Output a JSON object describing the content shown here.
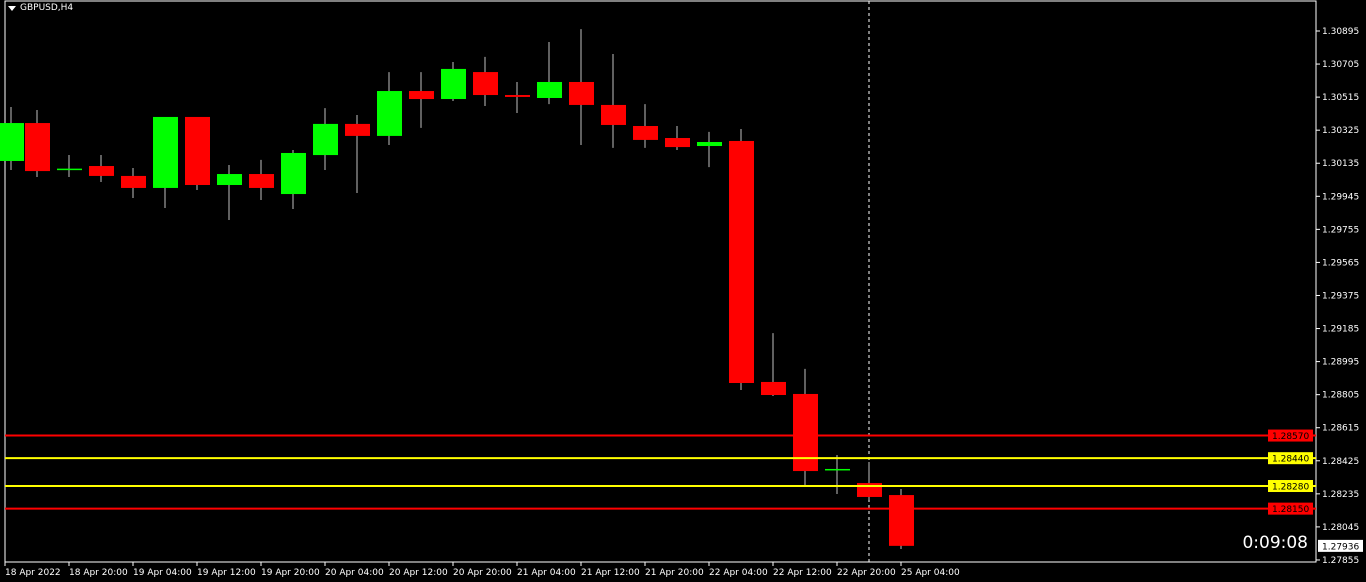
{
  "chart_data": {
    "type": "candlestick",
    "title": "GBPUSD,H4",
    "symbol": "GBPUSD",
    "timeframe": "H4",
    "ylim": [
      1.27815,
      1.30985
    ],
    "y_ticks": [
      "1.30895",
      "1.30705",
      "1.30515",
      "1.30325",
      "1.30135",
      "1.29945",
      "1.29755",
      "1.29565",
      "1.29375",
      "1.29185",
      "1.28995",
      "1.28805",
      "1.28615",
      "1.28425",
      "1.28235",
      "1.28045",
      "1.27855"
    ],
    "x_ticks": [
      "18 Apr 2022",
      "18 Apr 20:00",
      "19 Apr 04:00",
      "19 Apr 12:00",
      "19 Apr 20:00",
      "20 Apr 04:00",
      "20 Apr 12:00",
      "20 Apr 20:00",
      "21 Apr 04:00",
      "21 Apr 12:00",
      "21 Apr 20:00",
      "22 Apr 04:00",
      "22 Apr 12:00",
      "22 Apr 20:00",
      "25 Apr 04:00"
    ],
    "candles": [
      {
        "o": 1.30148,
        "h": 1.30458,
        "l": 1.30096,
        "c": 1.30366
      },
      {
        "o": 1.30366,
        "h": 1.30441,
        "l": 1.30056,
        "c": 1.3009
      },
      {
        "o": 1.301,
        "h": 1.30182,
        "l": 1.30056,
        "c": 1.30104
      },
      {
        "o": 1.30119,
        "h": 1.30182,
        "l": 1.30027,
        "c": 1.30062
      },
      {
        "o": 1.30062,
        "h": 1.30108,
        "l": 1.29935,
        "c": 1.29993
      },
      {
        "o": 1.29993,
        "h": 1.30401,
        "l": 1.29878,
        "c": 1.30401
      },
      {
        "o": 1.30401,
        "h": 1.30401,
        "l": 1.29981,
        "c": 1.3001
      },
      {
        "o": 1.3001,
        "h": 1.30125,
        "l": 1.29809,
        "c": 1.30073
      },
      {
        "o": 1.30073,
        "h": 1.30154,
        "l": 1.29924,
        "c": 1.29993
      },
      {
        "o": 1.29958,
        "h": 1.30211,
        "l": 1.29872,
        "c": 1.30194
      },
      {
        "o": 1.30182,
        "h": 1.30452,
        "l": 1.30096,
        "c": 1.30361
      },
      {
        "o": 1.30361,
        "h": 1.30412,
        "l": 1.29964,
        "c": 1.30292
      },
      {
        "o": 1.30292,
        "h": 1.30659,
        "l": 1.3024,
        "c": 1.3055
      },
      {
        "o": 1.3055,
        "h": 1.30659,
        "l": 1.30338,
        "c": 1.30504
      },
      {
        "o": 1.30504,
        "h": 1.30717,
        "l": 1.30493,
        "c": 1.30677
      },
      {
        "o": 1.30659,
        "h": 1.30746,
        "l": 1.30464,
        "c": 1.30527
      },
      {
        "o": 1.30527,
        "h": 1.30602,
        "l": 1.30424,
        "c": 1.30516
      },
      {
        "o": 1.3051,
        "h": 1.30832,
        "l": 1.30475,
        "c": 1.30602
      },
      {
        "o": 1.30602,
        "h": 1.30906,
        "l": 1.3024,
        "c": 1.3047
      },
      {
        "o": 1.3047,
        "h": 1.30763,
        "l": 1.30223,
        "c": 1.30355
      },
      {
        "o": 1.30349,
        "h": 1.30475,
        "l": 1.30223,
        "c": 1.30269
      },
      {
        "o": 1.3028,
        "h": 1.30349,
        "l": 1.30211,
        "c": 1.30228
      },
      {
        "o": 1.30234,
        "h": 1.30315,
        "l": 1.30113,
        "c": 1.30257
      },
      {
        "o": 1.30263,
        "h": 1.30332,
        "l": 1.28832,
        "c": 1.28872
      },
      {
        "o": 1.28878,
        "h": 1.29159,
        "l": 1.28797,
        "c": 1.28803
      },
      {
        "o": 1.28809,
        "h": 1.28953,
        "l": 1.28286,
        "c": 1.28366
      },
      {
        "o": 1.28372,
        "h": 1.28458,
        "l": 1.28234,
        "c": 1.28378
      },
      {
        "o": 1.28297,
        "h": 1.28418,
        "l": 1.282,
        "c": 1.28217
      },
      {
        "o": 1.28228,
        "h": 1.28263,
        "l": 1.27918,
        "c": 1.27936
      }
    ],
    "levels": [
      {
        "price": "1.28570",
        "color": "#ff0000"
      },
      {
        "price": "1.28440",
        "color": "#ffff00"
      },
      {
        "price": "1.28280",
        "color": "#ffff00"
      },
      {
        "price": "1.28150",
        "color": "#ff0000"
      }
    ],
    "bid": "1.27936",
    "colors": {
      "bull": "#00ff00",
      "bear": "#ff0000",
      "background": "#000000",
      "foreground": "#ffffff"
    }
  },
  "timer": "0:09:08"
}
